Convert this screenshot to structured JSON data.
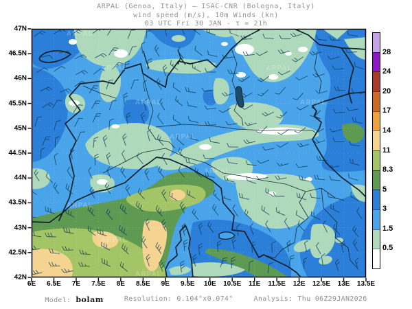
{
  "title": {
    "line1": "ARPAL (Genoa, Italy)  –  ISAC-CNR (Bologna, Italy)",
    "line2": "wind speed (m/s), 10m Winds (kn)",
    "line3": "03 UTC Fri 30 JAN  -  τ = 21h"
  },
  "footer": {
    "model_label": "Model:",
    "model_value": "bolam",
    "resolution_label": "Resolution:",
    "resolution_value": "0.104°x0.074°",
    "analysis_label": "Analysis:",
    "analysis_value": "Thu 06Z29JAN2026"
  },
  "watermark": "ARPAL",
  "chart_data": {
    "type": "heatmap",
    "title": "wind speed (m/s), 10m Winds (kn)",
    "valid_time": "03 UTC Fri 30 JAN",
    "lead_time": "21h",
    "organizations": [
      "ARPAL (Genoa, Italy)",
      "ISAC-CNR (Bologna, Italy)"
    ],
    "x_axis": {
      "ticks": [
        "6E",
        "6.5E",
        "7E",
        "7.5E",
        "8E",
        "8.5E",
        "9E",
        "9.5E",
        "10E",
        "10.5E",
        "11E",
        "11.5E",
        "12E",
        "12.5E",
        "13E",
        "13.5E"
      ],
      "range_deg": [
        6,
        13.5
      ]
    },
    "y_axis": {
      "ticks": [
        "47N",
        "46.5N",
        "46N",
        "45.5N",
        "45N",
        "44.5N",
        "44N",
        "43.5N",
        "43N",
        "42.5N",
        "42N"
      ],
      "range_deg": [
        42,
        47
      ]
    },
    "colorbar": {
      "levels": [
        "0.5",
        "1.5",
        "3",
        "5",
        "8.3",
        "11",
        "14",
        "17",
        "20",
        "24",
        "28"
      ],
      "colors": [
        "#ffffff",
        "#aed9bb",
        "#49a4e9",
        "#2b7fd9",
        "#5f9a53",
        "#a4c565",
        "#f5d492",
        "#eca33e",
        "#cd6a26",
        "#a93b2b",
        "#8d16c5",
        "#c6a3e5"
      ]
    },
    "overlay": "10m wind barbs (kn)",
    "model": "bolam",
    "resolution": "0.104°x0.074°",
    "analysis": "Thu 06Z29JAN2026"
  }
}
